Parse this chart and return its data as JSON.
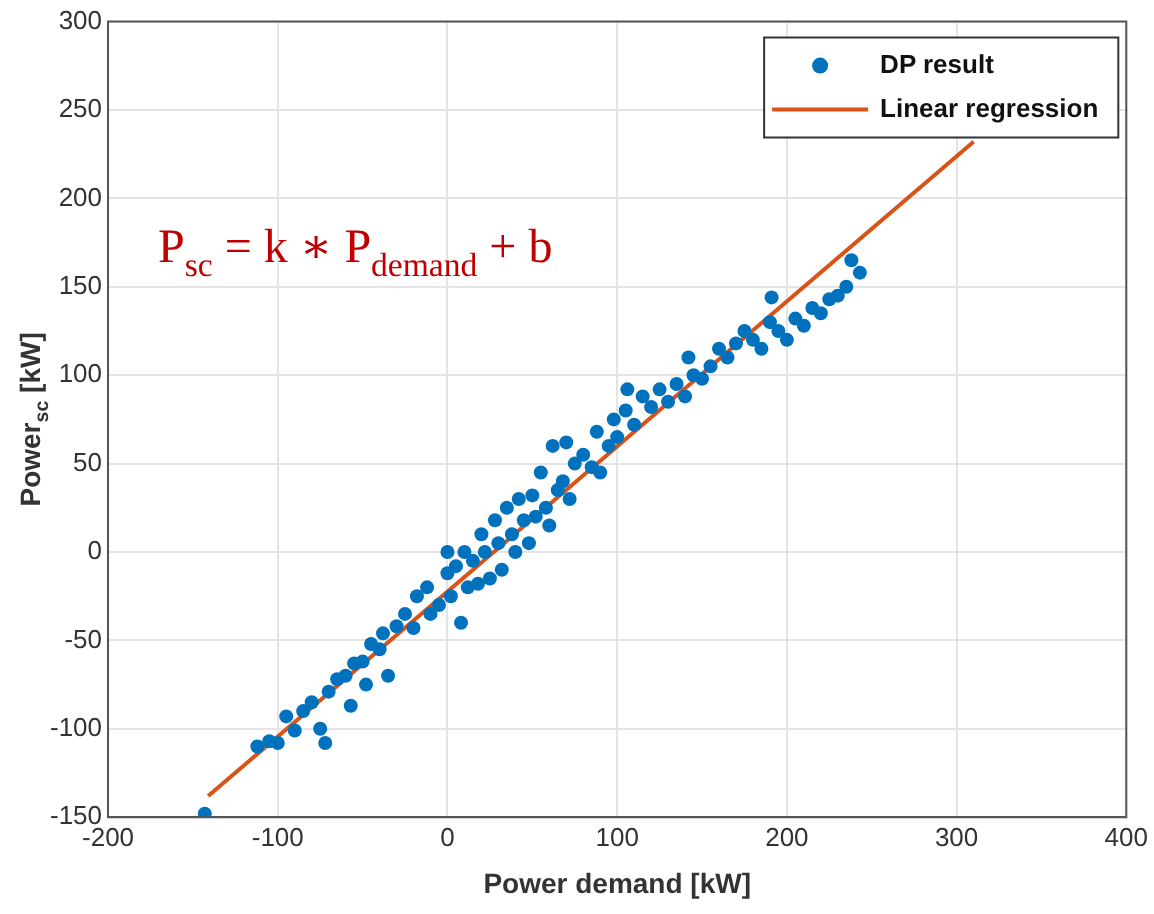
{
  "chart_data": {
    "type": "scatter",
    "xlabel": "Power demand [kW]",
    "ylabel": "Power$_{sc}$ [kW]",
    "annotations": [
      "P$_{sc}$ = k ∗ P$_{demand}$ + b"
    ],
    "xlim": [
      -200,
      400
    ],
    "xticks": [
      -200,
      -100,
      0,
      100,
      200,
      300,
      400
    ],
    "ylim": [
      -150,
      300
    ],
    "yticks": [
      -150,
      -100,
      -50,
      0,
      50,
      100,
      150,
      200,
      250,
      300
    ],
    "grid": true,
    "legend": "top right",
    "series": [
      {
        "name": "DP result",
        "type": "scatter",
        "marker": "circle",
        "color": "#0072bd",
        "x": [
          -143,
          -112,
          -105,
          -100,
          -95,
          -90,
          -85,
          -80,
          -75,
          -72,
          -70,
          -65,
          -60,
          -57,
          -55,
          -50,
          -48,
          -45,
          -40,
          -38,
          -35,
          -30,
          -25,
          -20,
          -18,
          -12,
          -10,
          -5,
          0,
          0,
          2,
          5,
          8,
          10,
          12,
          15,
          18,
          20,
          22,
          25,
          28,
          30,
          32,
          35,
          38,
          40,
          42,
          45,
          48,
          50,
          52,
          55,
          58,
          60,
          62,
          65,
          68,
          70,
          72,
          75,
          80,
          85,
          88,
          90,
          95,
          98,
          100,
          105,
          106,
          110,
          115,
          120,
          125,
          130,
          135,
          140,
          142,
          145,
          150,
          155,
          160,
          165,
          170,
          175,
          180,
          185,
          190,
          191,
          195,
          200,
          205,
          210,
          215,
          220,
          225,
          230,
          235,
          238,
          243
        ],
        "values": [
          -148,
          -110,
          -107,
          -108,
          -93,
          -101,
          -90,
          -85,
          -100,
          -108,
          -79,
          -72,
          -70,
          -87,
          -63,
          -62,
          -75,
          -52,
          -55,
          -46,
          -70,
          -42,
          -35,
          -43,
          -25,
          -20,
          -35,
          -30,
          -12,
          0,
          -25,
          -8,
          -40,
          0,
          -20,
          -5,
          -18,
          10,
          0,
          -15,
          18,
          5,
          -10,
          25,
          10,
          0,
          30,
          18,
          5,
          32,
          20,
          45,
          25,
          15,
          60,
          35,
          40,
          62,
          30,
          50,
          55,
          48,
          68,
          45,
          60,
          75,
          65,
          80,
          92,
          72,
          88,
          82,
          92,
          85,
          95,
          88,
          110,
          100,
          98,
          105,
          115,
          110,
          118,
          125,
          120,
          115,
          130,
          144,
          125,
          120,
          132,
          128,
          138,
          135,
          143,
          145,
          150,
          165,
          158
        ]
      },
      {
        "name": "Linear regression",
        "type": "line",
        "marker": "none",
        "line_style": "solid",
        "color": "#d95319",
        "x": [
          -141,
          310
        ],
        "values": [
          -138,
          232
        ]
      }
    ]
  }
}
